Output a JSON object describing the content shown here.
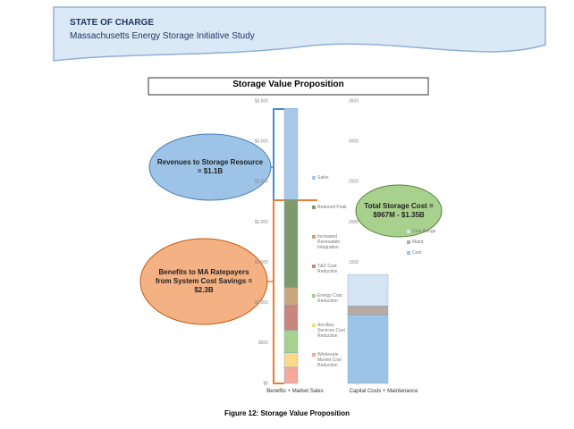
{
  "header": {
    "title": "STATE OF CHARGE",
    "subtitle": "Massachusetts Energy Storage Initiative Study"
  },
  "figure": {
    "title": "Storage Value Proposition",
    "caption": "Figure 12: Storage Value Proposition",
    "annotations": [
      "Revenues to Storage Resource = $1.1B",
      "Benefits to MA Ratepayers from System Cost Savings = $2.3B",
      "Total Storage Cost = $967M - $1.35B"
    ]
  },
  "chart_data": [
    {
      "type": "stacked_bar",
      "categories": [
        "Benefits + Market Sales"
      ],
      "ylim": [
        0,
        3500
      ],
      "yticks": [
        {
          "value": 0,
          "label": "$0"
        },
        {
          "value": 500,
          "label": "$500"
        },
        {
          "value": 1000,
          "label": "$1,000"
        },
        {
          "value": 1500,
          "label": "$1,500"
        },
        {
          "value": 2000,
          "label": "$2,000"
        },
        {
          "value": 2500,
          "label": "$2,500"
        },
        {
          "value": 3000,
          "label": "$3,000"
        },
        {
          "value": 3500,
          "label": "$3,500"
        }
      ],
      "series": [
        {
          "name": "Wholesale Market Cost Reduction",
          "color": "#f4a99a",
          "values": [
            200
          ]
        },
        {
          "name": "Ancillary Services Cost Reduction",
          "color": "#fcd98a",
          "values": [
            180
          ]
        },
        {
          "name": "Energy Cost Reduction",
          "color": "#a9d18e",
          "values": [
            280
          ]
        },
        {
          "name": "T&D Cost Reduction",
          "color": "#c9867c",
          "values": [
            310
          ]
        },
        {
          "name": "Increased Renewable Integration",
          "color": "#c9a77c",
          "values": [
            220
          ]
        },
        {
          "name": "Reduced Peak",
          "color": "#7f9a6a",
          "values": [
            1090
          ]
        },
        {
          "name": "Sales",
          "color": "#a9c8e8",
          "values": [
            1130
          ]
        }
      ]
    },
    {
      "type": "stacked_bar",
      "categories": [
        "Capital Costs + Maintenance"
      ],
      "ylim": [
        0,
        3500
      ],
      "yticks": [
        0,
        500,
        1000,
        1500,
        2000,
        2500,
        3000,
        3500
      ],
      "series": [
        {
          "name": "Cost",
          "color": "#9dc3e6",
          "values": [
            850
          ]
        },
        {
          "name": "Maint.",
          "color": "#b8a9a0",
          "values": [
            110
          ]
        },
        {
          "name": "Cost Range",
          "color": "#d5e4f2",
          "values": [
            390
          ]
        }
      ]
    }
  ]
}
